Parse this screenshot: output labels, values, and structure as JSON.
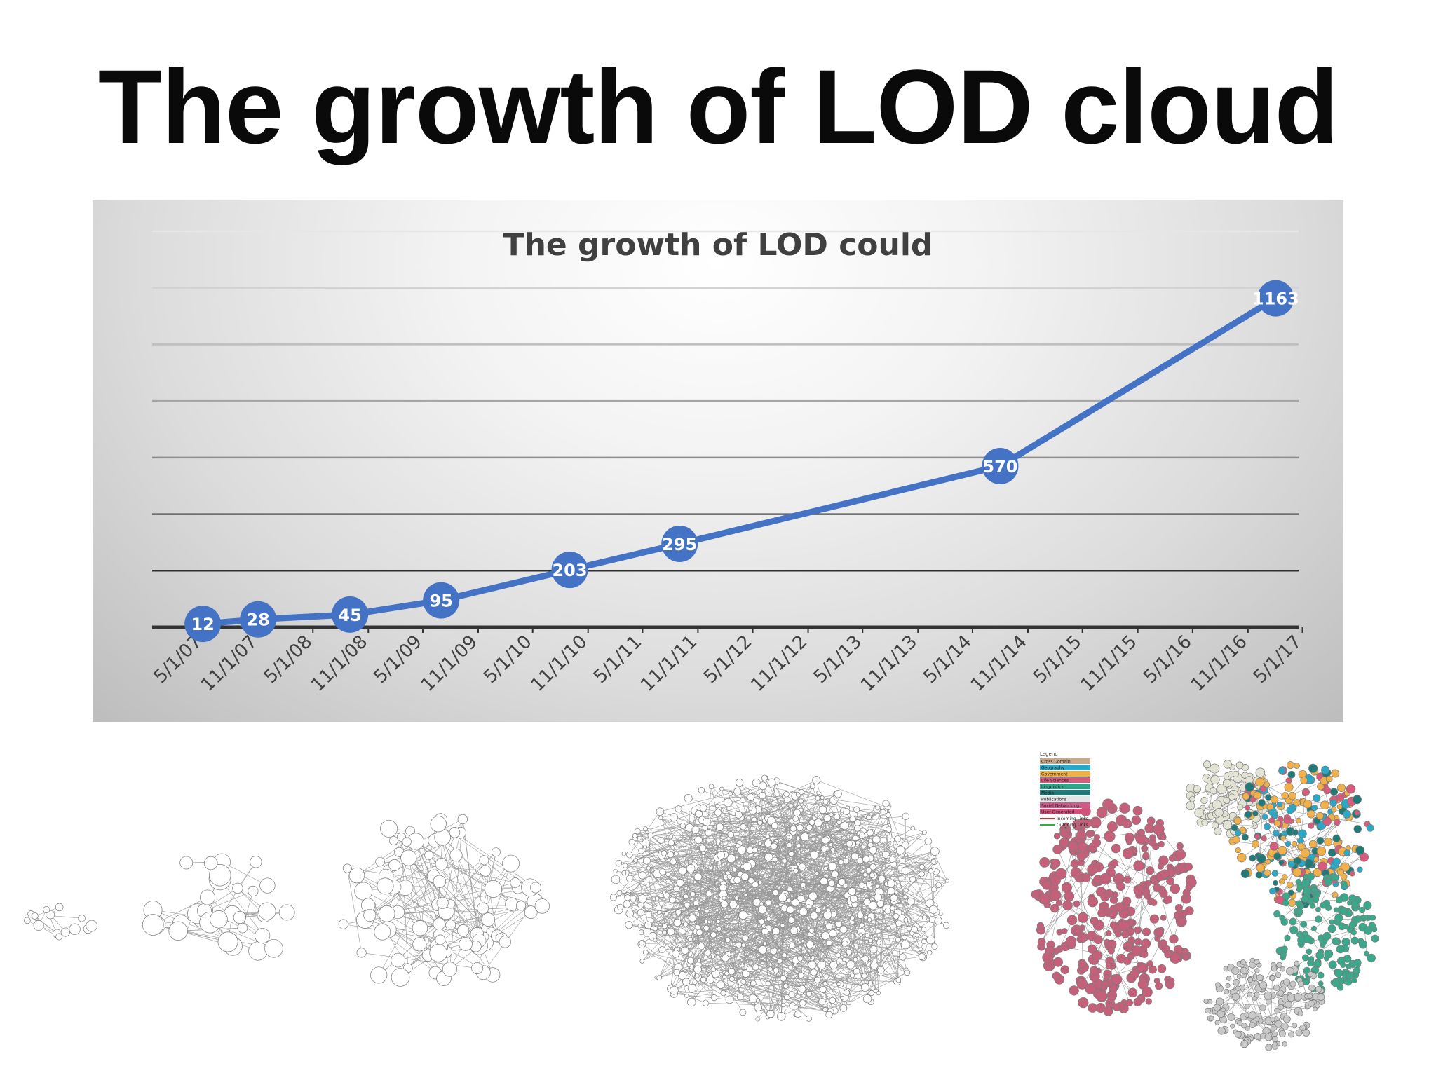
{
  "slide": {
    "title": "The growth of LOD cloud"
  },
  "chart_data": {
    "type": "line",
    "title": "The growth of LOD could",
    "xlabel": "",
    "ylabel": "",
    "x": [
      "5/1/07",
      "11/1/07",
      "5/1/08",
      "11/1/08",
      "5/1/09",
      "11/1/09",
      "5/1/10",
      "11/1/10",
      "5/1/11",
      "11/1/11",
      "5/1/12",
      "11/1/12",
      "5/1/13",
      "11/1/13",
      "5/1/14",
      "11/1/14",
      "5/1/15",
      "11/1/15",
      "5/1/16",
      "11/1/16",
      "5/1/17"
    ],
    "series": [
      {
        "points": [
          {
            "date": "2007-05-01",
            "value": 12
          },
          {
            "date": "2007-11-01",
            "value": 28
          },
          {
            "date": "2008-09-01",
            "value": 45
          },
          {
            "date": "2009-07-01",
            "value": 95
          },
          {
            "date": "2010-09-01",
            "value": 203
          },
          {
            "date": "2011-09-01",
            "value": 295
          },
          {
            "date": "2014-08-01",
            "value": 570
          },
          {
            "date": "2017-02-01",
            "value": 1163
          }
        ],
        "color": "#4472c4"
      }
    ],
    "ylim": [
      0,
      1400
    ],
    "grid": true,
    "legend": "none"
  },
  "thumbnails": {
    "legend_title": "Legend",
    "legend_items": [
      {
        "label": "Cross Domain",
        "color": "#c9a98a"
      },
      {
        "label": "Geography",
        "color": "#29a9c7"
      },
      {
        "label": "Government",
        "color": "#f0b04a"
      },
      {
        "label": "Life Sciences",
        "color": "#d75b7a"
      },
      {
        "label": "Linguistics",
        "color": "#2fa68a"
      },
      {
        "label": "Media",
        "color": "#227a78"
      },
      {
        "label": "Publications",
        "color": "#e5e5e5"
      },
      {
        "label": "Social Networking",
        "color": "#cf5a8a"
      },
      {
        "label": "User Generated",
        "color": "#d0517a"
      }
    ],
    "link_items": [
      {
        "label": "Incoming Links",
        "color": "#d03030"
      },
      {
        "label": "Outgoing Links",
        "color": "#30b040"
      }
    ]
  }
}
